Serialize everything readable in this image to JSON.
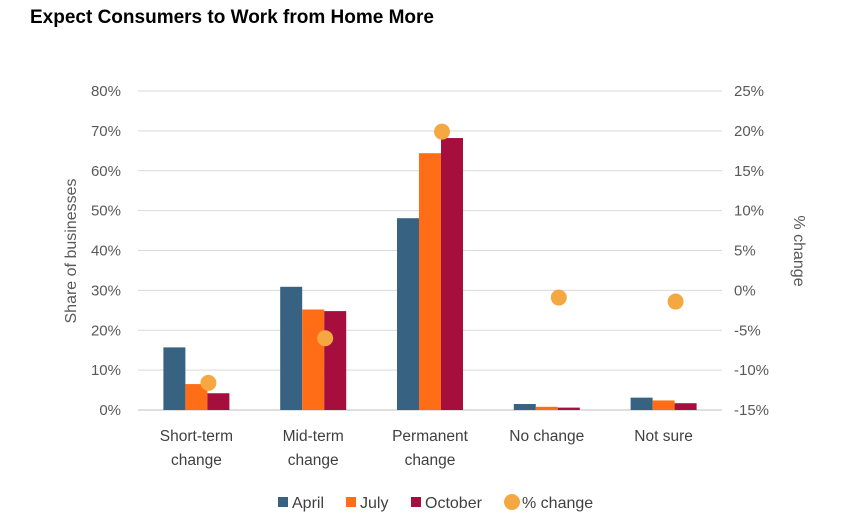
{
  "chart_data": {
    "type": "bar",
    "title": "Expect Consumers to Work from Home More",
    "categories": [
      [
        "Short-term",
        "change"
      ],
      [
        "Mid-term",
        "change"
      ],
      [
        "Permanent",
        "change"
      ],
      [
        "No change"
      ],
      [
        "Not sure"
      ]
    ],
    "series": [
      {
        "name": "April",
        "color": "#376281",
        "values": [
          15.7,
          30.9,
          48.1,
          1.5,
          3.1
        ]
      },
      {
        "name": "July",
        "color": "#FF6E17",
        "values": [
          6.5,
          25.2,
          64.4,
          0.8,
          2.4
        ]
      },
      {
        "name": "October",
        "color": "#A60E3E",
        "values": [
          4.2,
          24.8,
          68.2,
          0.6,
          1.7
        ]
      }
    ],
    "secondary_series": {
      "name": "% change",
      "type": "scatter",
      "color": "#F5A742",
      "values": [
        -11.6,
        -6.0,
        19.9,
        -0.9,
        -1.4
      ]
    },
    "ylabel": "Share of businesses",
    "y2label": "% change",
    "ylim": [
      0,
      80
    ],
    "y2lim": [
      -15,
      25
    ],
    "yticks": [
      "0%",
      "10%",
      "20%",
      "30%",
      "40%",
      "50%",
      "60%",
      "70%",
      "80%"
    ],
    "y2ticks": [
      "-15%",
      "-10%",
      "-5%",
      "0%",
      "5%",
      "10%",
      "15%",
      "20%",
      "25%"
    ],
    "grid": true,
    "legend": "bottom"
  }
}
